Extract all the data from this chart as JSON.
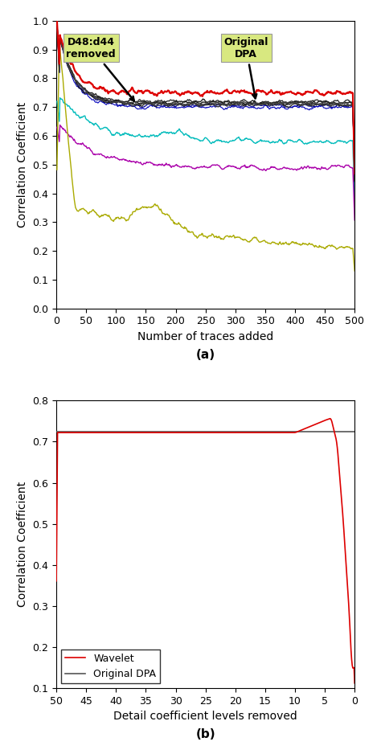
{
  "fig_width": 4.74,
  "fig_height": 9.38,
  "dpi": 100,
  "plot_a": {
    "xlim": [
      0,
      500
    ],
    "ylim": [
      0,
      1.0
    ],
    "xlabel": "Number of traces added",
    "ylabel": "Correlation Coefficient",
    "label": "(a)",
    "yticks": [
      0,
      0.1,
      0.2,
      0.3,
      0.4,
      0.5,
      0.6,
      0.7,
      0.8,
      0.9,
      1.0
    ],
    "xticks": [
      0,
      50,
      100,
      150,
      200,
      250,
      300,
      350,
      400,
      450,
      500
    ]
  },
  "plot_b": {
    "xlim": [
      50,
      0
    ],
    "ylim": [
      0.1,
      0.8
    ],
    "xlabel": "Detail coefficient levels removed",
    "ylabel": "Correlation Coefficient",
    "label": "(b)",
    "yticks": [
      0.1,
      0.2,
      0.3,
      0.4,
      0.5,
      0.6,
      0.7,
      0.8
    ],
    "xticks": [
      50,
      45,
      40,
      35,
      30,
      25,
      20,
      15,
      10,
      5,
      0
    ],
    "original_dpa_level": 0.725
  }
}
